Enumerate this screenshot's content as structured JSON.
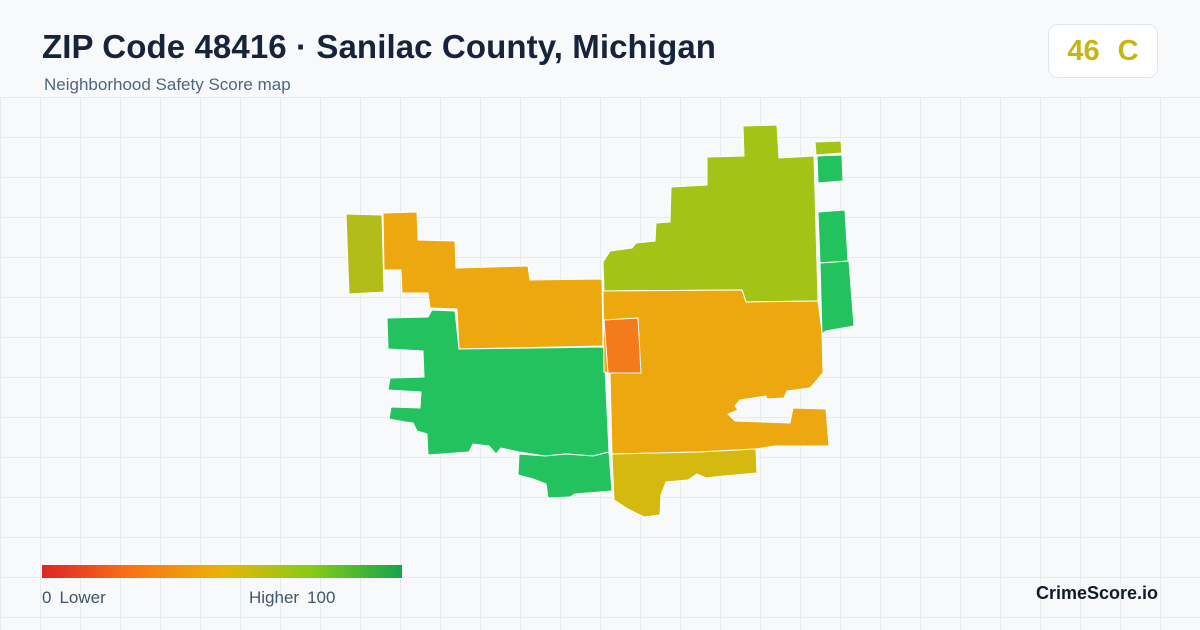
{
  "header": {
    "title": "ZIP Code 48416 · Sanilac County, Michigan",
    "subtitle": "Neighborhood Safety Score map"
  },
  "score": {
    "value": "46",
    "grade": "C",
    "color": "#c7b512"
  },
  "legend": {
    "low_value": "0",
    "low_label": "Lower",
    "high_label": "Higher",
    "high_value": "100",
    "colors": [
      "#dc2626",
      "#f97316",
      "#eab308",
      "#84cc16",
      "#16a34a"
    ]
  },
  "brand": "CrimeScore.io",
  "map": {
    "colors": {
      "green": "#22c35e",
      "yellow_green": "#a3c417",
      "olive": "#b2bd1a",
      "orange": "#eda70f",
      "red_orange": "#f47a1c",
      "mustard": "#d4b90e"
    }
  }
}
